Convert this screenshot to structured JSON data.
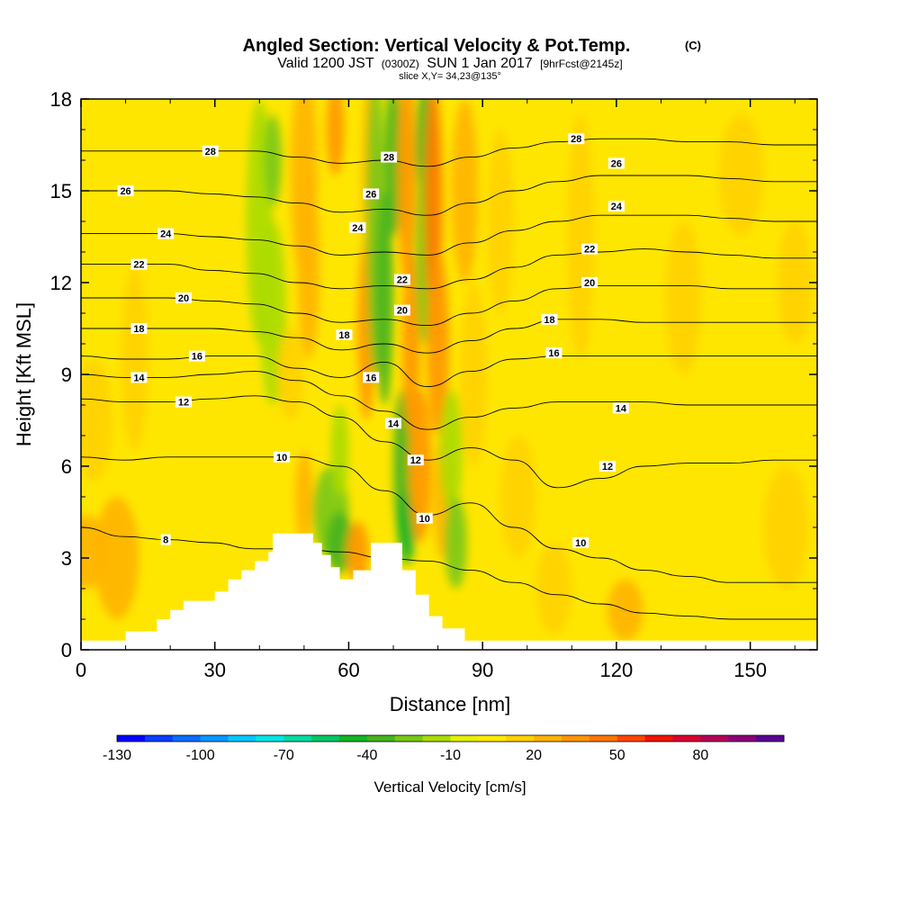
{
  "chart_data": {
    "type": "heatmap",
    "title": "Angled Section: Vertical Velocity & Pot.Temp.",
    "title_unit": "(C)",
    "subtitle_parts": [
      "Valid 1200 JST",
      "(0300Z)",
      "SUN 1 Jan 2017",
      "[9hrFcst@2145z]"
    ],
    "slice_label": "slice X,Y= 34,23@135°",
    "xlabel": "Distance [nm]",
    "ylabel": "Height [Kft MSL]",
    "xlim": [
      0,
      165
    ],
    "ylim": [
      0,
      18
    ],
    "xticks": [
      0,
      30,
      60,
      90,
      120,
      150
    ],
    "yticks": [
      0,
      3,
      6,
      9,
      12,
      15,
      18
    ],
    "colorbar": {
      "label": "Vertical Velocity [cm/s]",
      "tick_values": [
        -130,
        -100,
        -70,
        -40,
        -10,
        20,
        50,
        80
      ],
      "levels": [
        -130,
        -120,
        -110,
        -100,
        -90,
        -80,
        -70,
        -60,
        -50,
        -40,
        -30,
        -20,
        -10,
        0,
        10,
        20,
        30,
        40,
        50,
        60,
        70,
        80,
        90,
        100
      ],
      "colors": [
        "#0000ff",
        "#0a3cff",
        "#0a6cff",
        "#0a96ff",
        "#00c8ff",
        "#00e6e6",
        "#00dca0",
        "#00c864",
        "#14b428",
        "#46b41e",
        "#78c814",
        "#aadc00",
        "#e6f000",
        "#ffeb00",
        "#ffd200",
        "#ffb400",
        "#ff9600",
        "#ff7800",
        "#ff4600",
        "#f01400",
        "#dc0032",
        "#b4005a",
        "#8c0078",
        "#5a0096"
      ]
    },
    "terrain": [
      [
        0,
        0.3
      ],
      [
        10,
        0.3
      ],
      [
        10,
        0.6
      ],
      [
        17,
        0.6
      ],
      [
        17,
        1.0
      ],
      [
        20,
        1.0
      ],
      [
        20,
        1.3
      ],
      [
        23,
        1.3
      ],
      [
        23,
        1.6
      ],
      [
        30,
        1.6
      ],
      [
        30,
        1.9
      ],
      [
        33,
        1.9
      ],
      [
        33,
        2.3
      ],
      [
        36,
        2.3
      ],
      [
        36,
        2.6
      ],
      [
        39,
        2.6
      ],
      [
        39,
        2.9
      ],
      [
        42,
        2.9
      ],
      [
        42,
        3.2
      ],
      [
        43,
        3.2
      ],
      [
        43,
        3.8
      ],
      [
        52,
        3.8
      ],
      [
        52,
        3.5
      ],
      [
        54,
        3.5
      ],
      [
        54,
        3.1
      ],
      [
        56,
        3.1
      ],
      [
        56,
        2.7
      ],
      [
        58,
        2.7
      ],
      [
        58,
        2.3
      ],
      [
        61,
        2.3
      ],
      [
        61,
        2.6
      ],
      [
        65,
        2.6
      ],
      [
        65,
        3.5
      ],
      [
        72,
        3.5
      ],
      [
        72,
        2.6
      ],
      [
        75,
        2.6
      ],
      [
        75,
        1.8
      ],
      [
        78,
        1.8
      ],
      [
        78,
        1.1
      ],
      [
        81,
        1.1
      ],
      [
        81,
        0.7
      ],
      [
        86,
        0.7
      ],
      [
        86,
        0.3
      ],
      [
        165,
        0.3
      ]
    ],
    "theta_contours": [
      {
        "level": 8,
        "y": [
          4.0,
          3.7,
          3.6,
          3.5,
          3.3,
          3.3,
          3.2,
          3.0,
          2.9,
          2.6,
          2.2,
          1.8,
          1.5,
          1.2,
          1.1,
          1.0,
          1.0,
          1.0
        ]
      },
      {
        "level": 10,
        "y": [
          6.3,
          6.2,
          6.3,
          6.3,
          6.3,
          6.3,
          6.0,
          5.2,
          4.4,
          4.8,
          4.0,
          3.3,
          3.0,
          2.6,
          2.4,
          2.2,
          2.2,
          2.2
        ]
      },
      {
        "level": 12,
        "y": [
          8.2,
          8.1,
          8.1,
          8.2,
          8.3,
          8.1,
          7.6,
          6.8,
          6.2,
          6.6,
          6.2,
          5.3,
          5.6,
          6.0,
          6.1,
          6.1,
          6.2,
          6.2
        ]
      },
      {
        "level": 14,
        "y": [
          9.0,
          8.9,
          8.9,
          9.0,
          9.1,
          8.8,
          8.3,
          7.8,
          7.2,
          7.6,
          7.9,
          8.1,
          8.1,
          8.1,
          8.0,
          8.0,
          8.0,
          8.0
        ]
      },
      {
        "level": 16,
        "y": [
          9.6,
          9.5,
          9.5,
          9.6,
          9.6,
          9.2,
          8.9,
          9.4,
          8.6,
          9.1,
          9.5,
          9.6,
          9.6,
          9.6,
          9.6,
          9.6,
          9.6,
          9.6
        ]
      },
      {
        "level": 18,
        "y": [
          10.5,
          10.5,
          10.5,
          10.5,
          10.4,
          10.2,
          9.8,
          10.0,
          9.7,
          10.1,
          10.5,
          10.8,
          10.8,
          10.7,
          10.7,
          10.7,
          10.7,
          10.7
        ]
      },
      {
        "level": 20,
        "y": [
          11.5,
          11.5,
          11.5,
          11.4,
          11.3,
          11.0,
          10.7,
          10.8,
          10.6,
          11.0,
          11.4,
          11.8,
          11.9,
          11.9,
          11.9,
          11.8,
          11.8,
          11.8
        ]
      },
      {
        "level": 22,
        "y": [
          12.6,
          12.6,
          12.6,
          12.4,
          12.3,
          12.0,
          11.8,
          11.9,
          11.8,
          12.1,
          12.5,
          12.9,
          13.0,
          13.1,
          13.0,
          12.9,
          12.8,
          12.8
        ]
      },
      {
        "level": 24,
        "y": [
          13.6,
          13.6,
          13.6,
          13.5,
          13.4,
          13.2,
          12.9,
          13.0,
          12.9,
          13.3,
          13.7,
          14.0,
          14.2,
          14.2,
          14.2,
          14.1,
          14.0,
          14.0
        ]
      },
      {
        "level": 26,
        "y": [
          15.0,
          15.0,
          15.0,
          14.9,
          14.8,
          14.6,
          14.3,
          14.4,
          14.2,
          14.6,
          15.0,
          15.3,
          15.5,
          15.5,
          15.5,
          15.4,
          15.3,
          15.3
        ]
      },
      {
        "level": 28,
        "y": [
          16.3,
          16.3,
          16.3,
          16.3,
          16.3,
          16.1,
          15.9,
          16.0,
          15.8,
          16.1,
          16.4,
          16.6,
          16.7,
          16.7,
          16.6,
          16.6,
          16.5,
          16.5
        ]
      }
    ],
    "contour_labels": [
      {
        "text": "28",
        "x": 29,
        "y": 16.3
      },
      {
        "text": "26",
        "x": 10,
        "y": 15.0
      },
      {
        "text": "24",
        "x": 19,
        "y": 13.6
      },
      {
        "text": "22",
        "x": 13,
        "y": 12.6
      },
      {
        "text": "20",
        "x": 23,
        "y": 11.5
      },
      {
        "text": "18",
        "x": 13,
        "y": 10.5
      },
      {
        "text": "16",
        "x": 26,
        "y": 9.6
      },
      {
        "text": "14",
        "x": 13,
        "y": 8.9
      },
      {
        "text": "12",
        "x": 23,
        "y": 8.1
      },
      {
        "text": "10",
        "x": 45,
        "y": 6.3
      },
      {
        "text": "8",
        "x": 19,
        "y": 3.6
      },
      {
        "text": "28",
        "x": 69,
        "y": 16.1
      },
      {
        "text": "26",
        "x": 65,
        "y": 14.9
      },
      {
        "text": "24",
        "x": 62,
        "y": 13.8
      },
      {
        "text": "22",
        "x": 72,
        "y": 12.1
      },
      {
        "text": "20",
        "x": 72,
        "y": 11.1
      },
      {
        "text": "18",
        "x": 59,
        "y": 10.3
      },
      {
        "text": "16",
        "x": 65,
        "y": 8.9
      },
      {
        "text": "14",
        "x": 70,
        "y": 7.4
      },
      {
        "text": "12",
        "x": 75,
        "y": 6.2
      },
      {
        "text": "10",
        "x": 77,
        "y": 4.3
      },
      {
        "text": "28",
        "x": 111,
        "y": 16.7
      },
      {
        "text": "26",
        "x": 120,
        "y": 15.9
      },
      {
        "text": "24",
        "x": 120,
        "y": 14.5
      },
      {
        "text": "22",
        "x": 114,
        "y": 13.1
      },
      {
        "text": "20",
        "x": 114,
        "y": 12.0
      },
      {
        "text": "18",
        "x": 105,
        "y": 10.8
      },
      {
        "text": "16",
        "x": 106,
        "y": 9.7
      },
      {
        "text": "14",
        "x": 121,
        "y": 7.9
      },
      {
        "text": "12",
        "x": 118,
        "y": 6.0
      },
      {
        "text": "10",
        "x": 112,
        "y": 3.5
      }
    ],
    "velocity_field": [
      {
        "x": 1,
        "y": 3.2,
        "rx": 5,
        "ry": 1.2,
        "v": 20
      },
      {
        "x": 8,
        "y": 3.0,
        "rx": 5,
        "ry": 2.0,
        "v": 20
      },
      {
        "x": 12,
        "y": 9.5,
        "rx": 3,
        "ry": 3.0,
        "v": 10
      },
      {
        "x": 3,
        "y": 7.5,
        "rx": 4,
        "ry": 2.0,
        "v": 10
      },
      {
        "x": 40,
        "y": 14.0,
        "rx": 3,
        "ry": 4.0,
        "v": -20
      },
      {
        "x": 43,
        "y": 11.0,
        "rx": 3,
        "ry": 3.0,
        "v": -20
      },
      {
        "x": 43,
        "y": 16.0,
        "rx": 2,
        "ry": 1.5,
        "v": -30
      },
      {
        "x": 50,
        "y": 15.5,
        "rx": 3,
        "ry": 3.5,
        "v": 20
      },
      {
        "x": 51,
        "y": 12.5,
        "rx": 2.5,
        "ry": 3.0,
        "v": 20
      },
      {
        "x": 47,
        "y": 9.0,
        "rx": 3,
        "ry": 1.5,
        "v": 10
      },
      {
        "x": 57,
        "y": 17.0,
        "rx": 2,
        "ry": 1.5,
        "v": 30
      },
      {
        "x": 56,
        "y": 4.5,
        "rx": 4,
        "ry": 1.5,
        "v": -30
      },
      {
        "x": 58,
        "y": 3.5,
        "rx": 3,
        "ry": 1.0,
        "v": -40
      },
      {
        "x": 50,
        "y": 5.0,
        "rx": 2,
        "ry": 1.5,
        "v": 20
      },
      {
        "x": 58,
        "y": 6.5,
        "rx": 2,
        "ry": 1.5,
        "v": -20
      },
      {
        "x": 62,
        "y": 3.2,
        "rx": 2.5,
        "ry": 1.0,
        "v": 30
      },
      {
        "x": 64,
        "y": 10.5,
        "rx": 2,
        "ry": 3.0,
        "v": 30
      },
      {
        "x": 65,
        "y": 15.5,
        "rx": 2,
        "ry": 3.5,
        "v": 20
      },
      {
        "x": 66,
        "y": 14.0,
        "rx": 2,
        "ry": 5.0,
        "v": -30
      },
      {
        "x": 68,
        "y": 11.5,
        "rx": 2,
        "ry": 3.5,
        "v": -40
      },
      {
        "x": 70,
        "y": 16.0,
        "rx": 2,
        "ry": 2.5,
        "v": -40
      },
      {
        "x": 72,
        "y": 6.0,
        "rx": 2,
        "ry": 2.5,
        "v": -40
      },
      {
        "x": 73,
        "y": 4.0,
        "rx": 2,
        "ry": 1.2,
        "v": -50
      },
      {
        "x": 74,
        "y": 10.0,
        "rx": 2,
        "ry": 3.0,
        "v": 30
      },
      {
        "x": 73,
        "y": 15.5,
        "rx": 2,
        "ry": 3.5,
        "v": 30
      },
      {
        "x": 77,
        "y": 16.5,
        "rx": 2,
        "ry": 2.0,
        "v": -40
      },
      {
        "x": 77,
        "y": 13.0,
        "rx": 2,
        "ry": 3.0,
        "v": -30
      },
      {
        "x": 79,
        "y": 14.5,
        "rx": 2,
        "ry": 4.0,
        "v": 40
      },
      {
        "x": 80,
        "y": 10.0,
        "rx": 2.5,
        "ry": 3.0,
        "v": 30
      },
      {
        "x": 76,
        "y": 6.0,
        "rx": 2.5,
        "ry": 2.5,
        "v": 30
      },
      {
        "x": 81,
        "y": 5.0,
        "rx": 2,
        "ry": 2.0,
        "v": 20
      },
      {
        "x": 83,
        "y": 6.5,
        "rx": 2.5,
        "ry": 2.0,
        "v": -20
      },
      {
        "x": 84,
        "y": 3.5,
        "rx": 2.5,
        "ry": 1.5,
        "v": -30
      },
      {
        "x": 86,
        "y": 15.0,
        "rx": 3,
        "ry": 3.0,
        "v": 20
      },
      {
        "x": 88,
        "y": 9.0,
        "rx": 3,
        "ry": 3.0,
        "v": 10
      },
      {
        "x": 94,
        "y": 14.0,
        "rx": 3,
        "ry": 3.0,
        "v": 10
      },
      {
        "x": 98,
        "y": 5.0,
        "rx": 4,
        "ry": 2.0,
        "v": 10
      },
      {
        "x": 106,
        "y": 2.0,
        "rx": 4,
        "ry": 1.5,
        "v": 10
      },
      {
        "x": 112,
        "y": 13.5,
        "rx": 3,
        "ry": 4.0,
        "v": 10
      },
      {
        "x": 122,
        "y": 1.3,
        "rx": 4,
        "ry": 1.0,
        "v": 20
      },
      {
        "x": 135,
        "y": 11.5,
        "rx": 4,
        "ry": 2.5,
        "v": 10
      },
      {
        "x": 148,
        "y": 15.5,
        "rx": 5,
        "ry": 2.0,
        "v": 10
      },
      {
        "x": 158,
        "y": 4.0,
        "rx": 5,
        "ry": 2.0,
        "v": 10
      },
      {
        "x": 160,
        "y": 12.0,
        "rx": 4,
        "ry": 2.0,
        "v": 10
      }
    ]
  }
}
